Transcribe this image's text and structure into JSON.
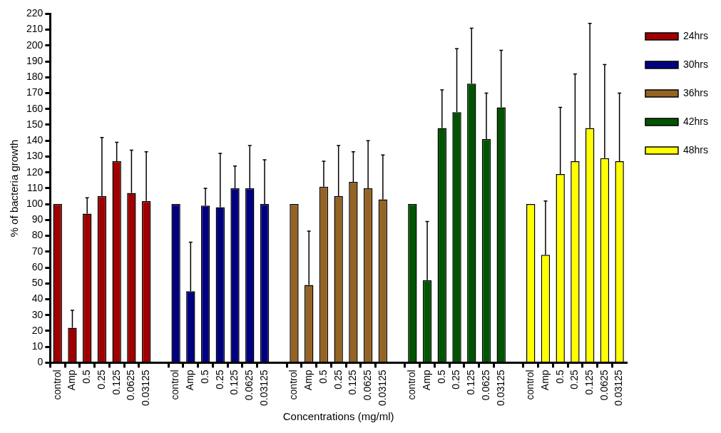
{
  "chart_data": {
    "type": "bar",
    "xlabel": "Concentrations (mg/ml)",
    "ylabel": "% of bacteria growth",
    "categories": [
      "control",
      "Amp",
      "0.5",
      "0.25",
      "0.125",
      "0.0625",
      "0.03125",
      null,
      "control",
      "Amp",
      "0.5",
      "0.25",
      "0.125",
      "0.0625",
      "0.03125",
      null,
      "control",
      "Amp",
      "0.5",
      "0.25",
      "0.125",
      "0.0625",
      "0.03125",
      null,
      "control",
      "Amp",
      "0.5",
      "0.25",
      "0.125",
      "0.0625",
      "0.03125",
      null,
      "control",
      "Amp",
      "0.5",
      "0.25",
      "0.125",
      "0.0625",
      "0.03125"
    ],
    "series": [
      {
        "name": "24hrs",
        "color": "#a00000",
        "values": [
          100,
          22,
          94,
          105,
          127,
          107,
          102,
          null,
          null,
          null,
          null,
          null,
          null,
          null,
          null,
          null,
          null,
          null,
          null,
          null,
          null,
          null,
          null,
          null,
          null,
          null,
          null,
          null,
          null,
          null,
          null,
          null,
          null,
          null,
          null,
          null,
          null,
          null,
          null
        ],
        "errors": [
          null,
          [
            22,
            33
          ],
          [
            94,
            104
          ],
          [
            105,
            142
          ],
          [
            127,
            139
          ],
          [
            107,
            134
          ],
          [
            102,
            133
          ],
          null,
          null,
          null,
          null,
          null,
          null,
          null,
          null,
          null,
          null,
          null,
          null,
          null,
          null,
          null,
          null,
          null,
          null,
          null,
          null,
          null,
          null,
          null,
          null,
          null,
          null,
          null,
          null,
          null,
          null,
          null,
          null
        ]
      },
      {
        "name": "30hrs",
        "color": "#000080",
        "values": [
          null,
          null,
          null,
          null,
          null,
          null,
          null,
          null,
          100,
          45,
          99,
          98,
          110,
          110,
          100,
          null,
          null,
          null,
          null,
          null,
          null,
          null,
          null,
          null,
          null,
          null,
          null,
          null,
          null,
          null,
          null,
          null,
          null,
          null,
          null,
          null,
          null,
          null,
          null
        ],
        "errors": [
          null,
          null,
          null,
          null,
          null,
          null,
          null,
          null,
          null,
          [
            45,
            76
          ],
          [
            99,
            110
          ],
          [
            98,
            132
          ],
          [
            110,
            124
          ],
          [
            110,
            137
          ],
          [
            100,
            128
          ],
          null,
          null,
          null,
          null,
          null,
          null,
          null,
          null,
          null,
          null,
          null,
          null,
          null,
          null,
          null,
          null,
          null,
          null,
          null,
          null,
          null,
          null,
          null,
          null
        ]
      },
      {
        "name": "36hrs",
        "color": "#956324",
        "values": [
          null,
          null,
          null,
          null,
          null,
          null,
          null,
          null,
          null,
          null,
          null,
          null,
          null,
          null,
          null,
          null,
          100,
          49,
          111,
          105,
          114,
          110,
          103,
          null,
          null,
          null,
          null,
          null,
          null,
          null,
          null,
          null,
          null,
          null,
          null,
          null,
          null,
          null,
          null
        ],
        "errors": [
          null,
          null,
          null,
          null,
          null,
          null,
          null,
          null,
          null,
          null,
          null,
          null,
          null,
          null,
          null,
          null,
          null,
          [
            49,
            83
          ],
          [
            111,
            127
          ],
          [
            105,
            137
          ],
          [
            114,
            133
          ],
          [
            110,
            140
          ],
          [
            103,
            131
          ],
          null,
          null,
          null,
          null,
          null,
          null,
          null,
          null,
          null,
          null,
          null,
          null,
          null,
          null,
          null,
          null
        ]
      },
      {
        "name": "42hrs",
        "color": "#005500",
        "values": [
          null,
          null,
          null,
          null,
          null,
          null,
          null,
          null,
          null,
          null,
          null,
          null,
          null,
          null,
          null,
          null,
          null,
          null,
          null,
          null,
          null,
          null,
          null,
          null,
          100,
          52,
          148,
          158,
          176,
          141,
          161,
          null,
          null,
          null,
          null,
          null,
          null,
          null,
          null
        ],
        "errors": [
          null,
          null,
          null,
          null,
          null,
          null,
          null,
          null,
          null,
          null,
          null,
          null,
          null,
          null,
          null,
          null,
          null,
          null,
          null,
          null,
          null,
          null,
          null,
          null,
          null,
          [
            52,
            89
          ],
          [
            148,
            172
          ],
          [
            158,
            198
          ],
          [
            176,
            211
          ],
          [
            141,
            170
          ],
          [
            161,
            197
          ],
          null,
          null,
          null,
          null,
          null,
          null,
          null,
          null
        ]
      },
      {
        "name": "48hrs",
        "color": "#ffff00",
        "values": [
          null,
          null,
          null,
          null,
          null,
          null,
          null,
          null,
          null,
          null,
          null,
          null,
          null,
          null,
          null,
          null,
          null,
          null,
          null,
          null,
          null,
          null,
          null,
          null,
          null,
          null,
          null,
          null,
          null,
          null,
          null,
          null,
          100,
          68,
          119,
          127,
          148,
          129,
          127
        ],
        "errors": [
          null,
          null,
          null,
          null,
          null,
          null,
          null,
          null,
          null,
          null,
          null,
          null,
          null,
          null,
          null,
          null,
          null,
          null,
          null,
          null,
          null,
          null,
          null,
          null,
          null,
          null,
          null,
          null,
          null,
          null,
          null,
          null,
          null,
          [
            68,
            102
          ],
          [
            119,
            161
          ],
          [
            127,
            182
          ],
          [
            148,
            214
          ],
          [
            129,
            188
          ],
          [
            127,
            170
          ]
        ]
      }
    ],
    "ylim": [
      0,
      220
    ],
    "yticks": [
      0,
      10,
      20,
      30,
      40,
      50,
      60,
      70,
      80,
      90,
      100,
      110,
      120,
      130,
      140,
      150,
      160,
      170,
      180,
      190,
      200,
      210,
      220
    ],
    "grid": false,
    "legend": "right"
  }
}
